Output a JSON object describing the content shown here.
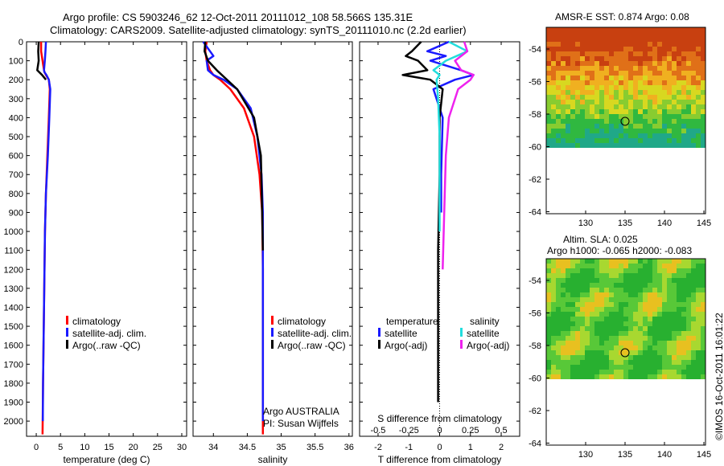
{
  "header": {
    "title_line1": "Argo profile: CS 5903246_62 12-Oct-2011 20111012_108 58.566S 135.31E",
    "title_line2": "Climatology: CARS2009. Satellite-adjusted climatology: synTS_20111010.nc (2.2d earlier)"
  },
  "colors": {
    "climatology": "#ff0000",
    "satellite": "#1a1aff",
    "argo": "#000000",
    "satellite_salinity": "#22dddd",
    "argo_salinity": "#ee22ee"
  },
  "depth_ticks": [
    "0",
    "100",
    "200",
    "300",
    "400",
    "500",
    "600",
    "700",
    "800",
    "900",
    "1000",
    "1100",
    "1200",
    "1300",
    "1400",
    "1500",
    "1600",
    "1700",
    "1800",
    "1900",
    "2000"
  ],
  "chart_data": [
    {
      "id": "temperature",
      "type": "line",
      "xlabel": "temperature (deg C)",
      "xlim": [
        -2,
        31
      ],
      "ylim": [
        0,
        2080
      ],
      "y_inverted": true,
      "xticks": [
        "0",
        "5",
        "10",
        "15",
        "20",
        "25",
        "30"
      ],
      "xtick_values": [
        0,
        5,
        10,
        15,
        20,
        25,
        30
      ],
      "legend": [
        "climatology",
        "satellite-adj. clim.",
        "Argo(..raw -QC)"
      ],
      "series": [
        {
          "name": "climatology",
          "color": "#ff0000",
          "x": [
            1.0,
            1.0,
            1.3,
            1.6,
            1.7,
            2.0,
            2.6,
            2.8,
            2.6,
            2.3,
            2.0,
            1.8,
            1.7,
            1.6,
            1.5,
            1.4,
            1.3
          ],
          "y": [
            0,
            50,
            100,
            150,
            160,
            175,
            200,
            250,
            400,
            600,
            800,
            1000,
            1200,
            1400,
            1600,
            1800,
            2070
          ]
        },
        {
          "name": "satellite-adj. clim.",
          "color": "#1a1aff",
          "x": [
            2.0,
            1.9,
            1.8,
            1.6,
            1.7,
            2.1,
            2.6,
            2.9,
            2.7,
            2.4,
            2.0,
            1.8,
            1.7,
            1.6,
            1.5,
            1.4,
            1.35
          ],
          "y": [
            0,
            50,
            90,
            150,
            160,
            175,
            200,
            250,
            400,
            600,
            800,
            1000,
            1200,
            1400,
            1600,
            1800,
            2000
          ]
        },
        {
          "name": "Argo(..raw -QC)",
          "color": "#000000",
          "x": [
            0.5,
            0.4,
            0.5,
            0.2,
            1.2,
            2.0
          ],
          "y": [
            0,
            50,
            100,
            150,
            175,
            200
          ]
        }
      ]
    },
    {
      "id": "salinity",
      "type": "line",
      "xlabel": "salinity",
      "xlim": [
        33.7,
        36.05
      ],
      "ylim": [
        0,
        2080
      ],
      "y_inverted": true,
      "xticks": [
        "34",
        "34.5",
        "35",
        "35.5",
        "36"
      ],
      "xtick_values": [
        34,
        34.5,
        35,
        35.5,
        36
      ],
      "legend": [
        "climatology",
        "satellite-adj. clim.",
        "Argo(..raw -QC)"
      ],
      "annotation": [
        "Argo AUSTRALIA",
        "PI: Susan Wijffels"
      ],
      "series": [
        {
          "name": "climatology",
          "color": "#ff0000",
          "x": [
            33.9,
            33.88,
            33.9,
            33.95,
            34.0,
            34.1,
            34.25,
            34.45,
            34.6,
            34.68,
            34.72,
            34.73,
            34.73,
            34.73
          ],
          "y": [
            0,
            50,
            100,
            150,
            175,
            200,
            250,
            350,
            500,
            700,
            900,
            1200,
            1600,
            2070
          ]
        },
        {
          "name": "satellite-adj. clim.",
          "color": "#1a1aff",
          "x": [
            33.85,
            33.95,
            34.0,
            33.9,
            33.92,
            34.0,
            34.15,
            34.35,
            34.55,
            34.65,
            34.71,
            34.73,
            34.73,
            34.73
          ],
          "y": [
            0,
            50,
            75,
            100,
            150,
            175,
            200,
            250,
            350,
            500,
            700,
            900,
            1200,
            2000
          ]
        },
        {
          "name": "Argo(..raw -QC)",
          "color": "#000000",
          "x": [
            33.88,
            33.87,
            33.92,
            34.05,
            34.35,
            34.6,
            34.7,
            34.72,
            34.73
          ],
          "y": [
            0,
            50,
            100,
            150,
            250,
            400,
            600,
            900,
            1100
          ]
        }
      ]
    },
    {
      "id": "difference",
      "type": "line",
      "xlabel": "T difference from climatology",
      "xlabel_top": "S difference from climatology",
      "xlim": [
        -2.6,
        2.6
      ],
      "ylim": [
        0,
        2080
      ],
      "y_inverted": true,
      "xticks": [
        "-2",
        "-1",
        "0",
        "1",
        "2"
      ],
      "xtick_values": [
        -2,
        -1,
        0,
        1,
        2
      ],
      "top_ticks": [
        "-0.5",
        "-0.25",
        "0",
        "0.25",
        "0.5"
      ],
      "legend_temperature_title": "temperature",
      "legend_salinity_title": "salinity",
      "legend": [
        "satellite",
        "Argo(-adj)",
        "satellite",
        "Argo(-adj)"
      ],
      "series": [
        {
          "name": "satellite",
          "color": "#1a1aff",
          "x": [
            0.3,
            -0.4,
            0.2,
            -0.3,
            0.7,
            1.1,
            0.5,
            -0.2,
            0.1,
            0.05,
            0.05
          ],
          "y": [
            0,
            50,
            75,
            100,
            150,
            175,
            200,
            250,
            400,
            700,
            900
          ]
        },
        {
          "name": "Argo(-adj)",
          "color": "#000000",
          "x": [
            -0.6,
            -0.9,
            -1.1,
            -0.7,
            -0.4,
            -1.2,
            -0.3,
            0.1,
            0.0,
            0.0,
            -0.05,
            -0.05
          ],
          "y": [
            0,
            50,
            75,
            100,
            150,
            175,
            200,
            250,
            400,
            700,
            1100,
            1900
          ]
        },
        {
          "name": "satellite",
          "color": "#22dddd",
          "x": [
            0.3,
            0.9,
            0.2,
            -0.2,
            0.0,
            -0.1,
            -0.05,
            0.0,
            0.0,
            0.0
          ],
          "y": [
            0,
            50,
            100,
            150,
            175,
            200,
            300,
            500,
            800,
            1000
          ]
        },
        {
          "name": "Argo(-adj)",
          "color": "#ee22ee",
          "x": [
            0.8,
            0.9,
            0.5,
            0.7,
            1.1,
            1.0,
            0.6,
            0.3,
            0.2,
            0.15,
            0.1
          ],
          "y": [
            0,
            50,
            100,
            150,
            175,
            200,
            250,
            400,
            600,
            900,
            1200
          ]
        }
      ]
    }
  ],
  "maps": [
    {
      "id": "sst_map",
      "title": "AMSR-E SST: 0.874  Argo: 0.08",
      "yticks": [
        "-54",
        "-56",
        "-58",
        "-60",
        "-62",
        "-64"
      ],
      "xticks": [
        "130",
        "135",
        "140",
        "145"
      ]
    },
    {
      "id": "sla_map",
      "title_line1": "Altim. SLA: 0.025",
      "title_line2": "Argo h1000: -0.065 h2000: -0.083",
      "yticks": [
        "-54",
        "-56",
        "-58",
        "-60",
        "-62",
        "-64"
      ],
      "xticks": [
        "130",
        "135",
        "140",
        "145"
      ]
    }
  ],
  "side_stamp": "©IMOS 16-Oct-2011 16:01:22"
}
